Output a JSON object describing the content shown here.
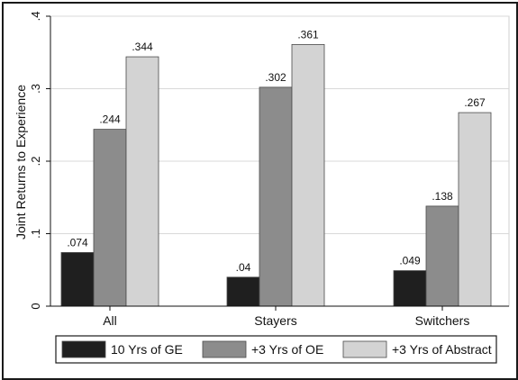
{
  "chart_data": {
    "type": "bar",
    "title": "",
    "xlabel": "",
    "ylabel": "Joint Returns to Experience",
    "ylim": [
      0,
      0.4
    ],
    "yticks": [
      {
        "value": 0,
        "label": "0"
      },
      {
        "value": 0.1,
        "label": ".1"
      },
      {
        "value": 0.2,
        "label": ".2"
      },
      {
        "value": 0.3,
        "label": ".3"
      },
      {
        "value": 0.4,
        "label": ".4"
      }
    ],
    "grid": true,
    "legend_position": "bottom",
    "categories": [
      "All",
      "Stayers",
      "Switchers"
    ],
    "series": [
      {
        "name": "10 Yrs of GE",
        "color": "#1f1f1f",
        "values": [
          0.074,
          0.04,
          0.049
        ],
        "labels": [
          ".074",
          ".04",
          ".049"
        ]
      },
      {
        "name": "+3 Yrs of OE",
        "color": "#8c8c8c",
        "values": [
          0.244,
          0.302,
          0.138
        ],
        "labels": [
          ".244",
          ".302",
          ".138"
        ]
      },
      {
        "name": "+3 Yrs of Abstract",
        "color": "#d3d3d3",
        "values": [
          0.344,
          0.361,
          0.267
        ],
        "labels": [
          ".344",
          ".361",
          ".267"
        ]
      }
    ]
  }
}
